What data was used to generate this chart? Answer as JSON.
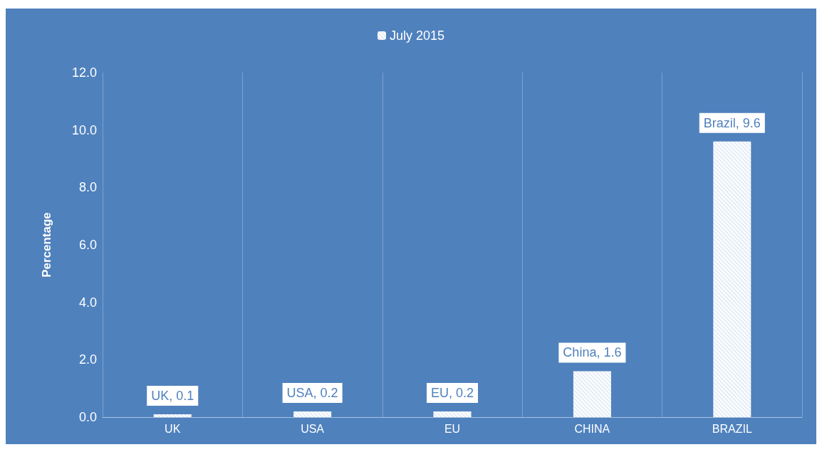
{
  "chart_data": {
    "type": "bar",
    "ylabel": "Percentage",
    "categories": [
      "UK",
      "USA",
      "EU",
      "CHINA",
      "BRAZIL"
    ],
    "series": [
      {
        "name": "July 2015",
        "color": "#ffffff",
        "values": [
          0.1,
          0.2,
          0.2,
          1.6,
          9.6
        ],
        "value_labels": [
          "UK, 0.1",
          "USA, 0.2",
          "EU, 0.2",
          "China, 1.6",
          "Brazil, 9.6"
        ]
      }
    ],
    "ylim": [
      0,
      12
    ],
    "yticks": [
      {
        "value": 0,
        "label": "0.0"
      },
      {
        "value": 2,
        "label": "2.0"
      },
      {
        "value": 4,
        "label": "4.0"
      },
      {
        "value": 6,
        "label": "6.0"
      },
      {
        "value": 8,
        "label": "8.0"
      },
      {
        "value": 10,
        "label": "10.0"
      },
      {
        "value": 12,
        "label": "12.0"
      }
    ],
    "grid": "x",
    "legend": "top"
  }
}
